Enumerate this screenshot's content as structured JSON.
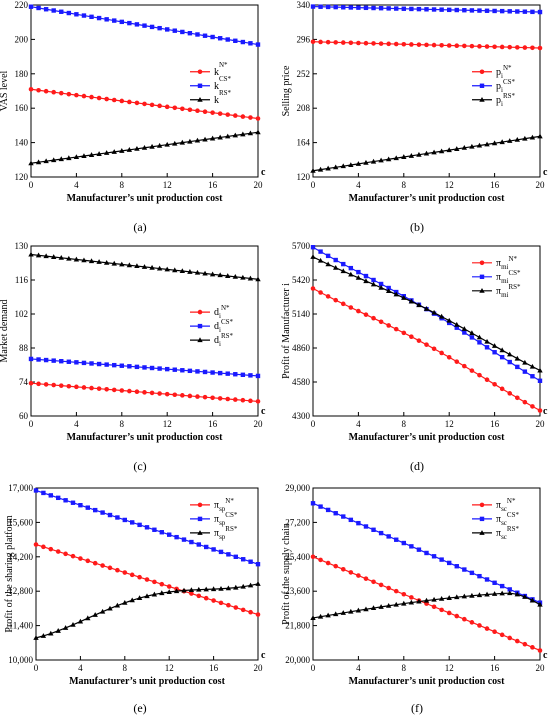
{
  "figure": {
    "series_colors": [
      "#ff1a1a",
      "#1a1aff",
      "#000000"
    ],
    "marker_shapes": [
      "circle",
      "square",
      "triangle"
    ],
    "panels": [
      {
        "label": "(a)"
      },
      {
        "label": "(b)"
      },
      {
        "label": "(c)"
      },
      {
        "label": "(d)"
      },
      {
        "label": "(e)"
      },
      {
        "label": "(f)"
      }
    ]
  },
  "chart_data": [
    {
      "type": "line",
      "xlabel": "Manufacturer’s unit production cost",
      "ylabel": "VAS level",
      "x_end_label": "c",
      "xlim": [
        0,
        20
      ],
      "ylim": [
        120,
        220
      ],
      "xticks": [
        0,
        4,
        8,
        12,
        16,
        20
      ],
      "yticks": [
        120,
        140,
        160,
        180,
        200,
        220
      ],
      "legend_position": "center-right",
      "legend": [
        {
          "base": "k",
          "sub": "",
          "sup": "N*"
        },
        {
          "base": "k",
          "sub": "",
          "sup": "CS*"
        },
        {
          "base": "k",
          "sub": "",
          "sup": "RS*"
        }
      ],
      "series": [
        {
          "start": 171,
          "end": 154
        },
        {
          "start": 219,
          "end": 197
        },
        {
          "start": 128,
          "end": 146
        }
      ]
    },
    {
      "type": "line",
      "xlabel": "Manufacturer’s unit production cost",
      "ylabel": "Selling price",
      "x_end_label": "c",
      "xlim": [
        0,
        20
      ],
      "ylim": [
        120,
        340
      ],
      "xticks": [
        0,
        4,
        8,
        12,
        16,
        20
      ],
      "yticks": [
        120,
        164,
        208,
        252,
        296,
        340
      ],
      "legend_position": "center-right",
      "legend": [
        {
          "base": "p",
          "sub": "i",
          "sup": "N*"
        },
        {
          "base": "p",
          "sub": "i",
          "sup": "CS*"
        },
        {
          "base": "p",
          "sub": "i",
          "sup": "RS*"
        }
      ],
      "series": [
        {
          "start": 293,
          "end": 285
        },
        {
          "start": 338,
          "end": 331
        },
        {
          "start": 128,
          "end": 172
        }
      ]
    },
    {
      "type": "line",
      "xlabel": "Manufacturer’s unit production cost",
      "ylabel": "Market demand",
      "x_end_label": "c",
      "xlim": [
        0,
        20
      ],
      "ylim": [
        60,
        130
      ],
      "xticks": [
        0,
        4,
        8,
        12,
        16,
        20
      ],
      "yticks": [
        60,
        74,
        88,
        102,
        116,
        130
      ],
      "legend_position": "center-right",
      "legend": [
        {
          "base": "d",
          "sub": "i",
          "sup": "N*"
        },
        {
          "base": "d",
          "sub": "i",
          "sup": "CS*"
        },
        {
          "base": "d",
          "sub": "i",
          "sup": "RS*"
        }
      ],
      "series": [
        {
          "start": 73.5,
          "end": 66
        },
        {
          "start": 83.5,
          "end": 76.5
        },
        {
          "start": 126.5,
          "end": 116.3
        }
      ]
    },
    {
      "type": "line",
      "xlabel": "Manufacturer’s unit production cost",
      "ylabel": "Profit of Manufacturer i",
      "x_end_label": "c",
      "xlim": [
        0,
        20
      ],
      "ylim": [
        4300,
        5700
      ],
      "xticks": [
        0,
        4,
        8,
        12,
        16,
        20
      ],
      "yticks": [
        4300,
        4580,
        4860,
        5140,
        5420,
        5700
      ],
      "legend_position": "top-right",
      "legend": [
        {
          "base": "π",
          "sub": "mi",
          "sup": "N*"
        },
        {
          "base": "π",
          "sub": "mi",
          "sup": "CS*"
        },
        {
          "base": "π",
          "sub": "mi",
          "sup": "RS*"
        }
      ],
      "series": [
        {
          "start": 5350,
          "end": 4345,
          "curve": 40
        },
        {
          "start": 5690,
          "end": 4590,
          "curve": 40
        },
        {
          "start": 5610,
          "end": 4675,
          "curve": 40
        }
      ]
    },
    {
      "type": "line",
      "xlabel": "Manufacturer’s unit production cost",
      "ylabel": "Profit of the sharing platform",
      "x_end_label": "c",
      "xlim": [
        0,
        20
      ],
      "ylim": [
        10000,
        17000
      ],
      "xticks": [
        0,
        4,
        8,
        12,
        16,
        20
      ],
      "yticks": [
        10000,
        11400,
        12800,
        14200,
        15600,
        17000
      ],
      "ytick_labels": [
        "10,000",
        "11,400",
        "12,800",
        "14,200",
        "15,600",
        "17,000"
      ],
      "legend_position": "top-right",
      "legend": [
        {
          "base": "π",
          "sub": "sp",
          "sup": "N*"
        },
        {
          "base": "π",
          "sub": "sp",
          "sup": "CS*"
        },
        {
          "base": "π",
          "sub": "sp",
          "sup": "RS*"
        }
      ],
      "series": [
        {
          "start": 14700,
          "end": 11850
        },
        {
          "start": 16900,
          "end": 13900
        },
        {
          "start": 10900,
          "end": 13100,
          "curve": 600
        }
      ]
    },
    {
      "type": "line",
      "xlabel": "Manufacturer’s unit production cost",
      "ylabel": "Profit of the supply chain",
      "x_end_label": "c",
      "xlim": [
        0,
        20
      ],
      "ylim": [
        20000,
        29000
      ],
      "xticks": [
        0,
        4,
        8,
        12,
        16,
        20
      ],
      "yticks": [
        20000,
        21800,
        23600,
        25400,
        27200,
        29000
      ],
      "ytick_labels": [
        "20,000",
        "21,800",
        "23,600",
        "25,400",
        "27,200",
        "29,000"
      ],
      "legend_position": "top-right",
      "legend": [
        {
          "base": "π",
          "sub": "sc",
          "sup": "N*"
        },
        {
          "base": "π",
          "sub": "sc",
          "sup": "CS*"
        },
        {
          "base": "π",
          "sub": "sc",
          "sup": "RS*"
        }
      ],
      "series": [
        {
          "start": 25400,
          "end": 20500
        },
        {
          "start": 28200,
          "end": 23000
        },
        {
          "start": 22200,
          "end": 22900,
          "curve": 700,
          "peak": 17
        }
      ]
    }
  ]
}
